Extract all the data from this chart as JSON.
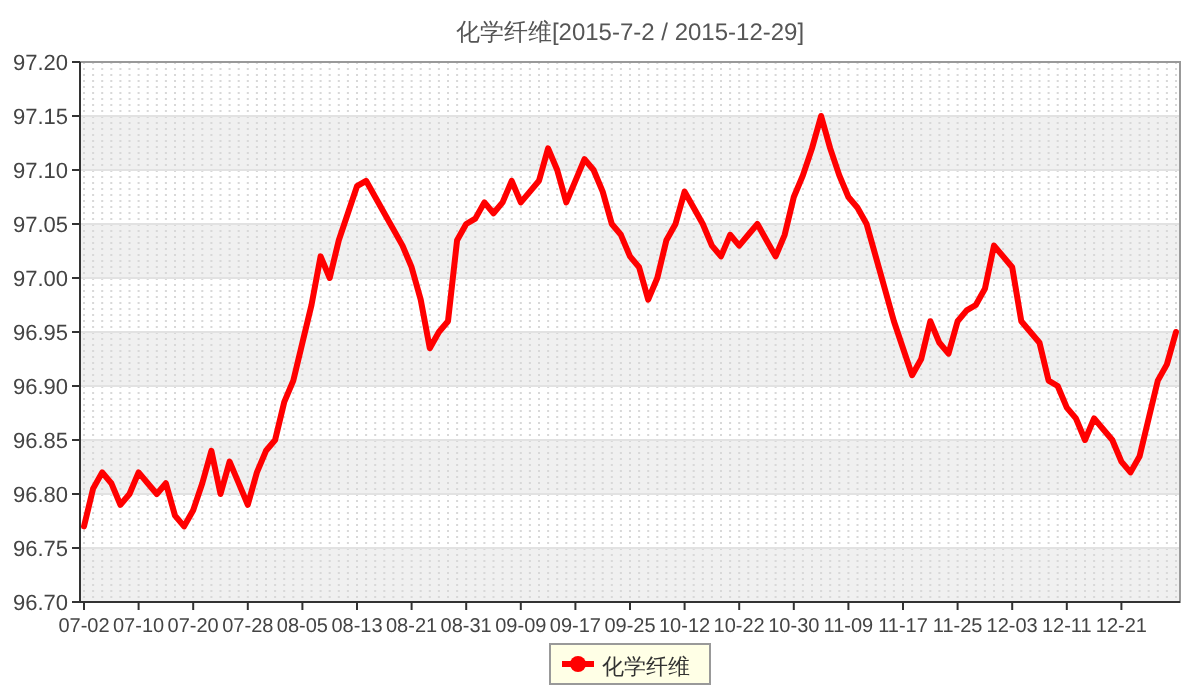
{
  "chart_data": {
    "type": "line",
    "title": "化学纤维[2015-7-2 / 2015-12-29]",
    "categories": [
      "07-02",
      null,
      null,
      null,
      null,
      null,
      "07-10",
      null,
      null,
      null,
      null,
      null,
      "07-20",
      null,
      null,
      null,
      null,
      null,
      "07-28",
      null,
      null,
      null,
      null,
      null,
      "08-05",
      null,
      null,
      null,
      null,
      null,
      "08-13",
      null,
      null,
      null,
      null,
      null,
      "08-21",
      null,
      null,
      null,
      null,
      null,
      "08-31",
      null,
      null,
      null,
      null,
      null,
      "09-09",
      null,
      null,
      null,
      null,
      null,
      "09-17",
      null,
      null,
      null,
      null,
      null,
      "09-25",
      null,
      null,
      null,
      null,
      null,
      "10-12",
      null,
      null,
      null,
      null,
      null,
      "10-22",
      null,
      null,
      null,
      null,
      null,
      "10-30",
      null,
      null,
      null,
      null,
      null,
      "11-09",
      null,
      null,
      null,
      null,
      null,
      "11-17",
      null,
      null,
      null,
      null,
      null,
      "11-25",
      null,
      null,
      null,
      null,
      null,
      "12-03",
      null,
      null,
      null,
      null,
      null,
      "12-11",
      null,
      null,
      null,
      null,
      null,
      "12-21",
      null,
      null,
      null,
      null,
      null,
      null
    ],
    "series": [
      {
        "name": "化学纤维",
        "color": "#ff0000",
        "values": [
          96.77,
          96.805,
          96.82,
          96.81,
          96.79,
          96.8,
          96.82,
          96.81,
          96.8,
          96.81,
          96.78,
          96.77,
          96.785,
          96.81,
          96.84,
          96.8,
          96.83,
          96.81,
          96.79,
          96.82,
          96.84,
          96.85,
          96.885,
          96.905,
          96.94,
          96.975,
          97.02,
          97.0,
          97.035,
          97.06,
          97.085,
          97.09,
          97.075,
          97.06,
          97.045,
          97.03,
          97.01,
          96.98,
          96.935,
          96.95,
          96.96,
          97.035,
          97.05,
          97.055,
          97.07,
          97.06,
          97.07,
          97.09,
          97.07,
          97.08,
          97.09,
          97.12,
          97.1,
          97.07,
          97.09,
          97.11,
          97.1,
          97.08,
          97.05,
          97.04,
          97.02,
          97.01,
          96.98,
          97.0,
          97.035,
          97.05,
          97.08,
          97.065,
          97.05,
          97.03,
          97.02,
          97.04,
          97.03,
          97.04,
          97.05,
          97.035,
          97.02,
          97.04,
          97.075,
          97.095,
          97.12,
          97.15,
          97.12,
          97.095,
          97.075,
          97.065,
          97.05,
          97.02,
          96.99,
          96.96,
          96.935,
          96.91,
          96.925,
          96.96,
          96.94,
          96.93,
          96.96,
          96.97,
          96.975,
          96.99,
          97.03,
          97.02,
          97.01,
          96.96,
          96.95,
          96.94,
          96.905,
          96.9,
          96.88,
          96.87,
          96.85,
          96.87,
          96.86,
          96.85,
          96.83,
          96.82,
          96.835,
          96.87,
          96.905,
          96.92,
          96.95
        ]
      }
    ],
    "ylim": [
      96.7,
      97.2
    ],
    "yticks": [
      {
        "value": 96.7,
        "label": "96.70"
      },
      {
        "value": 96.75,
        "label": "96.75"
      },
      {
        "value": 96.8,
        "label": "96.80"
      },
      {
        "value": 96.85,
        "label": "96.85"
      },
      {
        "value": 96.9,
        "label": "96.90"
      },
      {
        "value": 96.95,
        "label": "96.95"
      },
      {
        "value": 97.0,
        "label": "97.00"
      },
      {
        "value": 97.05,
        "label": "97.05"
      },
      {
        "value": 97.1,
        "label": "97.10"
      },
      {
        "value": 97.15,
        "label": "97.15"
      },
      {
        "value": 97.2,
        "label": "97.20"
      }
    ],
    "grid": true,
    "legend": "bottom",
    "marker": "none",
    "line_style": "solid"
  }
}
